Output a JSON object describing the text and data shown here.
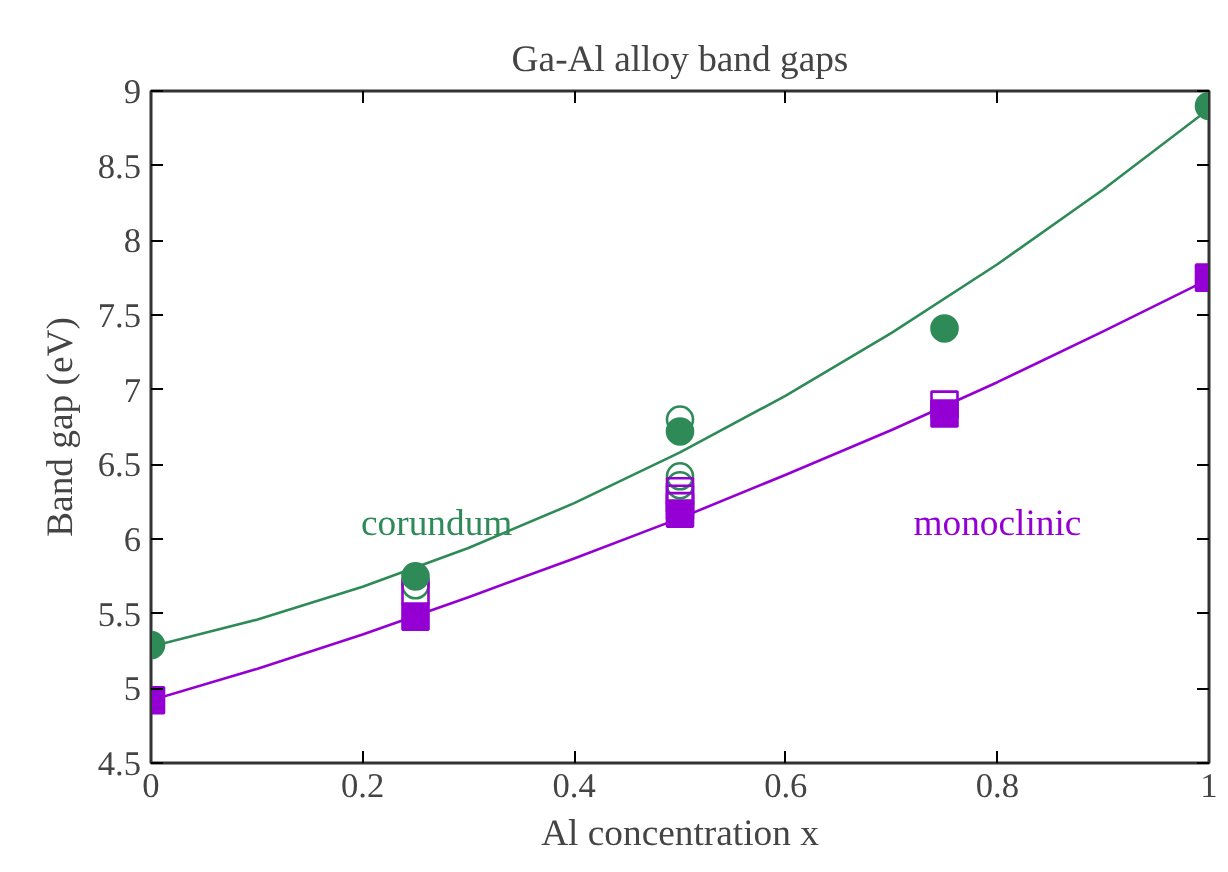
{
  "chart_data": {
    "type": "scatter",
    "title": "Ga-Al alloy band gaps",
    "xlabel": "Al concentration x",
    "ylabel": "Band gap (eV)",
    "xlim": [
      0,
      1
    ],
    "xticks": [
      0,
      0.2,
      0.4,
      0.6,
      0.8,
      1
    ],
    "ylim": [
      4.5,
      9
    ],
    "yticks": [
      4.5,
      5,
      5.5,
      6,
      6.5,
      7,
      7.5,
      8,
      8.5,
      9
    ],
    "grid": false,
    "series": [
      {
        "type": "line",
        "color": "#2e8b57",
        "marker": "none",
        "x": [
          0,
          0.1,
          0.2,
          0.3,
          0.4,
          0.5,
          0.6,
          0.7,
          0.8,
          0.9,
          1
        ],
        "values": [
          5.28,
          5.46,
          5.68,
          5.94,
          6.24,
          6.58,
          6.96,
          7.38,
          7.84,
          8.34,
          8.88
        ]
      },
      {
        "type": "line",
        "color": "#9400d3",
        "marker": "none",
        "x": [
          0,
          0.1,
          0.2,
          0.3,
          0.4,
          0.5,
          0.6,
          0.7,
          0.8,
          0.9,
          1
        ],
        "values": [
          4.92,
          5.13,
          5.36,
          5.61,
          5.87,
          6.14,
          6.43,
          6.73,
          7.05,
          7.39,
          7.74
        ]
      },
      {
        "color": "#2e8b57",
        "marker": "circle",
        "x": [
          0.25,
          0.5,
          0.5,
          0.5
        ],
        "values": [
          5.69,
          6.8,
          6.42,
          6.36
        ]
      },
      {
        "color": "#9400d3",
        "marker": "square",
        "x": [
          0.25,
          0.5,
          0.5,
          0.5,
          0.75
        ],
        "values": [
          5.65,
          6.32,
          6.27,
          6.22,
          6.9
        ]
      },
      {
        "name": "corundum",
        "color": "#2e8b57",
        "marker": "circle",
        "x": [
          0,
          0.25,
          0.5,
          0.75,
          1
        ],
        "values": [
          5.29,
          5.75,
          6.72,
          7.41,
          8.9
        ]
      },
      {
        "name": "monoclinic",
        "color": "#9400d3",
        "marker": "square",
        "x": [
          0,
          0.25,
          0.5,
          0.75,
          1
        ],
        "values": [
          4.92,
          5.48,
          6.17,
          6.84,
          7.75
        ]
      }
    ]
  }
}
